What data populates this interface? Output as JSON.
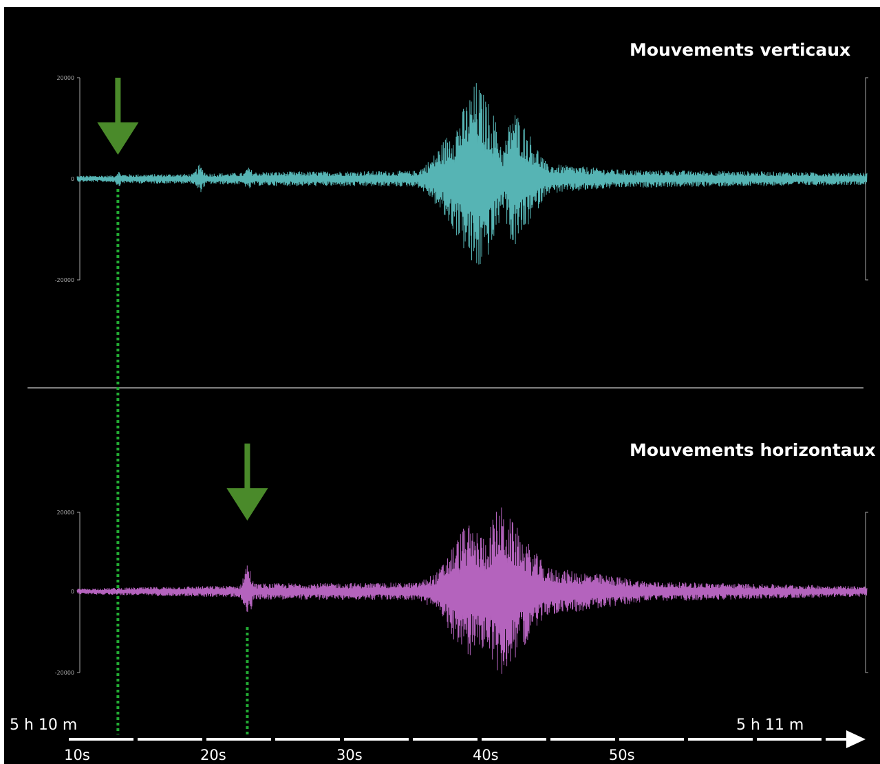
{
  "chart_data": [
    {
      "type": "line",
      "title": "Mouvements verticaux",
      "yticks": [
        "20000",
        "0",
        "-20000"
      ],
      "ylim": [
        -20000,
        20000
      ],
      "xlim": [
        10,
        68
      ],
      "color": "#5fc8c8",
      "envelope": [
        {
          "t": 10.0,
          "amp": 600
        },
        {
          "t": 12.8,
          "amp": 700
        },
        {
          "t": 13.0,
          "amp": 1800
        },
        {
          "t": 13.3,
          "amp": 900
        },
        {
          "t": 18.5,
          "amp": 1000
        },
        {
          "t": 19.0,
          "amp": 3000
        },
        {
          "t": 19.5,
          "amp": 1100
        },
        {
          "t": 22.3,
          "amp": 1200
        },
        {
          "t": 22.5,
          "amp": 2500
        },
        {
          "t": 23.0,
          "amp": 1400
        },
        {
          "t": 35.0,
          "amp": 1600
        },
        {
          "t": 36.0,
          "amp": 4000
        },
        {
          "t": 38.0,
          "amp": 12000
        },
        {
          "t": 39.3,
          "amp": 19500
        },
        {
          "t": 40.5,
          "amp": 14000
        },
        {
          "t": 41.3,
          "amp": 6000
        },
        {
          "t": 42.0,
          "amp": 14500
        },
        {
          "t": 43.0,
          "amp": 10000
        },
        {
          "t": 44.5,
          "amp": 3000
        },
        {
          "t": 50.0,
          "amp": 1800
        },
        {
          "t": 68.0,
          "amp": 1200
        }
      ],
      "marker_arrival_time": 13.0
    },
    {
      "type": "line",
      "title": "Mouvements horizontaux",
      "yticks": [
        "20000",
        "0",
        "-20000"
      ],
      "ylim": [
        -20000,
        20000
      ],
      "xlim": [
        10,
        68
      ],
      "color": "#c86ed2",
      "envelope": [
        {
          "t": 10.0,
          "amp": 700
        },
        {
          "t": 18.5,
          "amp": 1300
        },
        {
          "t": 22.0,
          "amp": 1500
        },
        {
          "t": 22.5,
          "amp": 8000
        },
        {
          "t": 23.0,
          "amp": 2000
        },
        {
          "t": 35.0,
          "amp": 2200
        },
        {
          "t": 36.5,
          "amp": 5000
        },
        {
          "t": 38.5,
          "amp": 17000
        },
        {
          "t": 40.0,
          "amp": 14000
        },
        {
          "t": 41.0,
          "amp": 22000
        },
        {
          "t": 42.5,
          "amp": 15000
        },
        {
          "t": 44.5,
          "amp": 6000
        },
        {
          "t": 48.0,
          "amp": 4500
        },
        {
          "t": 52.0,
          "amp": 2500
        },
        {
          "t": 68.0,
          "amp": 1300
        }
      ],
      "marker_arrival_time": 22.5
    }
  ],
  "time_axis": {
    "start_label": "5 h 10 m",
    "end_label": "5 h 11 m",
    "ticks": [
      {
        "t": 10,
        "label": "10s"
      },
      {
        "t": 20,
        "label": "20s"
      },
      {
        "t": 30,
        "label": "30s"
      },
      {
        "t": 40,
        "label": "40s"
      },
      {
        "t": 50,
        "label": "50s"
      }
    ]
  },
  "colors": {
    "background": "#000000",
    "arrow": "#4a8a2a",
    "marker_line": "#22aa33",
    "axis": "#ffffff",
    "scale": "#aaaaaa"
  }
}
